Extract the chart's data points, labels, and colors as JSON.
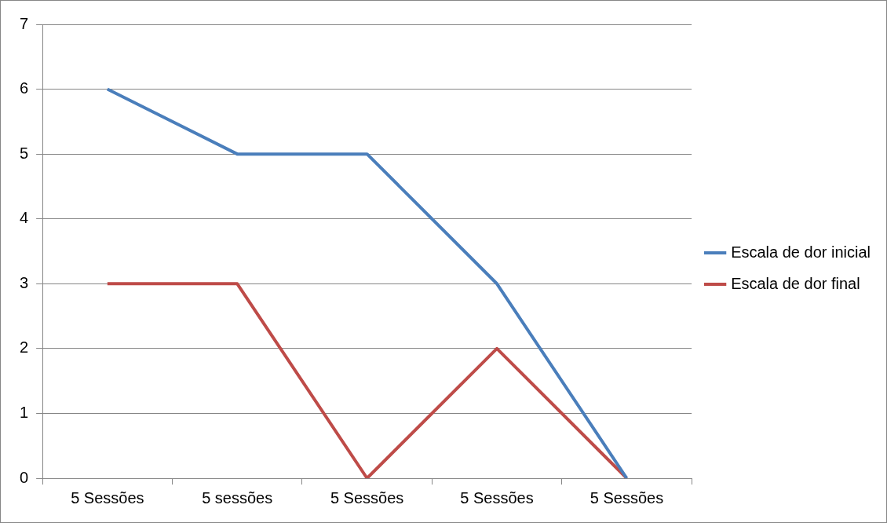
{
  "chart_data": {
    "type": "line",
    "categories": [
      "5 Sessões",
      "5 sessões",
      "5 Sessões",
      "5 Sessões",
      "5 Sessões"
    ],
    "series": [
      {
        "name": "Escala de dor inicial",
        "color": "#4a7ebb",
        "values": [
          6,
          5,
          5,
          3,
          0
        ]
      },
      {
        "name": "Escala de dor final",
        "color": "#be4b48",
        "values": [
          3,
          3,
          0,
          2,
          0
        ]
      }
    ],
    "ylim": [
      0,
      7
    ],
    "yticks": [
      0,
      1,
      2,
      3,
      4,
      5,
      6,
      7
    ],
    "grid": "y",
    "legend": "right",
    "marker": "none",
    "line_style": "solid"
  }
}
